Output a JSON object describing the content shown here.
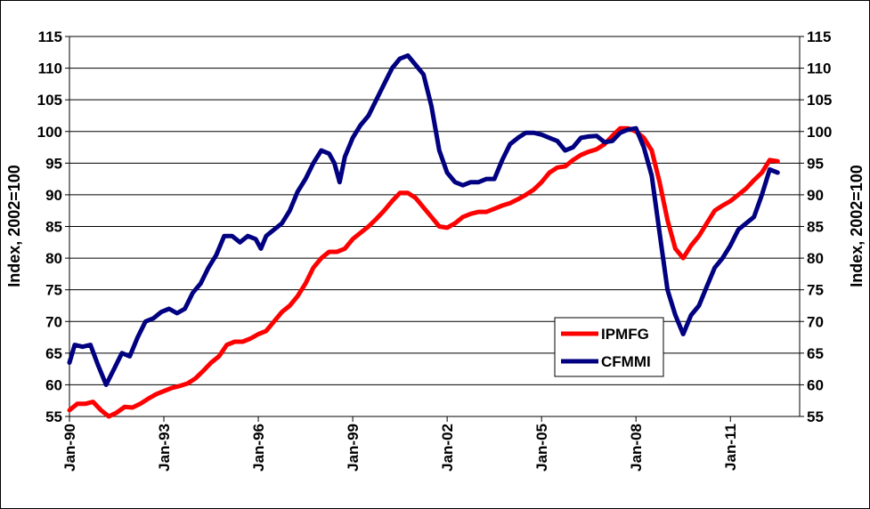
{
  "chart_data": {
    "type": "line",
    "ylabel_left": "Index, 2002=100",
    "ylabel_right": "Index, 2002=100",
    "xlabel": "",
    "ylim": [
      55,
      115
    ],
    "y_ticks": [
      55,
      60,
      65,
      70,
      75,
      80,
      85,
      90,
      95,
      100,
      105,
      110,
      115
    ],
    "x_ticks": [
      "Jan-90",
      "Jan-93",
      "Jan-96",
      "Jan-99",
      "Jan-02",
      "Jan-05",
      "Jan-08",
      "Jan-11"
    ],
    "grid": "horizontal",
    "legend_position": "lower-right",
    "colors": {
      "IPMFG": "#ff0000",
      "CFMMI": "#000080"
    },
    "series": [
      {
        "name": "IPMFG",
        "color": "#ff0000",
        "points": [
          [
            "1990-01",
            56.0
          ],
          [
            "1990-04",
            57.0
          ],
          [
            "1990-07",
            57.0
          ],
          [
            "1990-10",
            57.3
          ],
          [
            "1991-01",
            56.0
          ],
          [
            "1991-04",
            55.0
          ],
          [
            "1991-07",
            55.6
          ],
          [
            "1991-10",
            56.5
          ],
          [
            "1992-01",
            56.4
          ],
          [
            "1992-04",
            57.0
          ],
          [
            "1992-07",
            57.8
          ],
          [
            "1992-10",
            58.5
          ],
          [
            "1993-01",
            59.0
          ],
          [
            "1993-04",
            59.5
          ],
          [
            "1993-07",
            59.8
          ],
          [
            "1993-10",
            60.2
          ],
          [
            "1994-01",
            61.0
          ],
          [
            "1994-04",
            62.2
          ],
          [
            "1994-07",
            63.5
          ],
          [
            "1994-10",
            64.5
          ],
          [
            "1995-01",
            66.3
          ],
          [
            "1995-04",
            66.8
          ],
          [
            "1995-07",
            66.8
          ],
          [
            "1995-10",
            67.3
          ],
          [
            "1996-01",
            68.0
          ],
          [
            "1996-04",
            68.5
          ],
          [
            "1996-07",
            70.0
          ],
          [
            "1996-10",
            71.5
          ],
          [
            "1997-01",
            72.5
          ],
          [
            "1997-04",
            74.0
          ],
          [
            "1997-07",
            76.0
          ],
          [
            "1997-10",
            78.5
          ],
          [
            "1998-01",
            80.0
          ],
          [
            "1998-04",
            81.0
          ],
          [
            "1998-07",
            81.0
          ],
          [
            "1998-10",
            81.5
          ],
          [
            "1999-01",
            83.0
          ],
          [
            "1999-04",
            84.0
          ],
          [
            "1999-07",
            85.0
          ],
          [
            "1999-10",
            86.2
          ],
          [
            "2000-01",
            87.5
          ],
          [
            "2000-04",
            89.0
          ],
          [
            "2000-07",
            90.3
          ],
          [
            "2000-10",
            90.3
          ],
          [
            "2001-01",
            89.5
          ],
          [
            "2001-04",
            88.0
          ],
          [
            "2001-07",
            86.5
          ],
          [
            "2001-10",
            85.0
          ],
          [
            "2002-01",
            84.8
          ],
          [
            "2002-04",
            85.5
          ],
          [
            "2002-07",
            86.5
          ],
          [
            "2002-10",
            87.0
          ],
          [
            "2003-01",
            87.3
          ],
          [
            "2003-04",
            87.3
          ],
          [
            "2003-07",
            87.8
          ],
          [
            "2003-10",
            88.3
          ],
          [
            "2004-01",
            88.7
          ],
          [
            "2004-04",
            89.3
          ],
          [
            "2004-07",
            90.0
          ],
          [
            "2004-10",
            90.8
          ],
          [
            "2005-01",
            92.0
          ],
          [
            "2005-04",
            93.5
          ],
          [
            "2005-07",
            94.3
          ],
          [
            "2005-10",
            94.5
          ],
          [
            "2006-01",
            95.5
          ],
          [
            "2006-04",
            96.3
          ],
          [
            "2006-07",
            96.8
          ],
          [
            "2006-10",
            97.2
          ],
          [
            "2007-01",
            98.0
          ],
          [
            "2007-04",
            99.3
          ],
          [
            "2007-07",
            100.5
          ],
          [
            "2007-10",
            100.5
          ],
          [
            "2008-01",
            100.0
          ],
          [
            "2008-04",
            99.0
          ],
          [
            "2008-07",
            97.0
          ],
          [
            "2008-10",
            92.0
          ],
          [
            "2009-01",
            86.0
          ],
          [
            "2009-04",
            81.5
          ],
          [
            "2009-07",
            80.0
          ],
          [
            "2009-10",
            82.0
          ],
          [
            "2010-01",
            83.5
          ],
          [
            "2010-04",
            85.5
          ],
          [
            "2010-07",
            87.5
          ],
          [
            "2010-10",
            88.3
          ],
          [
            "2011-01",
            89.0
          ],
          [
            "2011-04",
            90.0
          ],
          [
            "2011-07",
            91.0
          ],
          [
            "2011-10",
            92.3
          ],
          [
            "2012-01",
            93.5
          ],
          [
            "2012-04",
            95.5
          ],
          [
            "2012-07",
            95.3
          ]
        ]
      },
      {
        "name": "CFMMI",
        "color": "#000080",
        "points": [
          [
            "1990-01",
            63.5
          ],
          [
            "1990-03",
            66.3
          ],
          [
            "1990-06",
            66.0
          ],
          [
            "1990-09",
            66.3
          ],
          [
            "1990-12",
            63.0
          ],
          [
            "1991-03",
            60.0
          ],
          [
            "1991-06",
            62.5
          ],
          [
            "1991-09",
            65.0
          ],
          [
            "1991-12",
            64.5
          ],
          [
            "1992-03",
            67.5
          ],
          [
            "1992-06",
            70.0
          ],
          [
            "1992-09",
            70.5
          ],
          [
            "1992-12",
            71.5
          ],
          [
            "1993-03",
            72.0
          ],
          [
            "1993-06",
            71.3
          ],
          [
            "1993-09",
            72.0
          ],
          [
            "1993-12",
            74.5
          ],
          [
            "1994-03",
            76.0
          ],
          [
            "1994-06",
            78.5
          ],
          [
            "1994-09",
            80.5
          ],
          [
            "1994-12",
            83.5
          ],
          [
            "1995-03",
            83.5
          ],
          [
            "1995-06",
            82.5
          ],
          [
            "1995-09",
            83.5
          ],
          [
            "1995-12",
            83.0
          ],
          [
            "1996-02",
            81.5
          ],
          [
            "1996-04",
            83.5
          ],
          [
            "1996-07",
            84.5
          ],
          [
            "1996-10",
            85.5
          ],
          [
            "1997-01",
            87.5
          ],
          [
            "1997-04",
            90.5
          ],
          [
            "1997-07",
            92.5
          ],
          [
            "1997-10",
            95.0
          ],
          [
            "1998-01",
            97.0
          ],
          [
            "1998-04",
            96.5
          ],
          [
            "1998-06",
            95.0
          ],
          [
            "1998-08",
            92.0
          ],
          [
            "1998-10",
            96.0
          ],
          [
            "1999-01",
            99.0
          ],
          [
            "1999-04",
            101.0
          ],
          [
            "1999-07",
            102.5
          ],
          [
            "1999-10",
            105.0
          ],
          [
            "2000-01",
            107.5
          ],
          [
            "2000-04",
            110.0
          ],
          [
            "2000-07",
            111.5
          ],
          [
            "2000-10",
            112.0
          ],
          [
            "2001-01",
            110.5
          ],
          [
            "2001-04",
            109.0
          ],
          [
            "2001-07",
            104.0
          ],
          [
            "2001-10",
            97.0
          ],
          [
            "2002-01",
            93.5
          ],
          [
            "2002-04",
            92.0
          ],
          [
            "2002-07",
            91.5
          ],
          [
            "2002-10",
            92.0
          ],
          [
            "2003-01",
            92.0
          ],
          [
            "2003-04",
            92.5
          ],
          [
            "2003-07",
            92.5
          ],
          [
            "2003-10",
            95.5
          ],
          [
            "2004-01",
            98.0
          ],
          [
            "2004-04",
            99.0
          ],
          [
            "2004-07",
            99.8
          ],
          [
            "2004-10",
            99.8
          ],
          [
            "2005-01",
            99.5
          ],
          [
            "2005-04",
            99.0
          ],
          [
            "2005-07",
            98.5
          ],
          [
            "2005-10",
            97.0
          ],
          [
            "2006-01",
            97.5
          ],
          [
            "2006-04",
            99.0
          ],
          [
            "2006-07",
            99.2
          ],
          [
            "2006-10",
            99.3
          ],
          [
            "2007-01",
            98.3
          ],
          [
            "2007-04",
            98.5
          ],
          [
            "2007-07",
            99.8
          ],
          [
            "2007-10",
            100.3
          ],
          [
            "2008-01",
            100.5
          ],
          [
            "2008-04",
            97.5
          ],
          [
            "2008-07",
            93.0
          ],
          [
            "2008-10",
            84.0
          ],
          [
            "2009-01",
            75.0
          ],
          [
            "2009-04",
            71.0
          ],
          [
            "2009-07",
            68.0
          ],
          [
            "2009-10",
            71.0
          ],
          [
            "2010-01",
            72.5
          ],
          [
            "2010-04",
            75.5
          ],
          [
            "2010-07",
            78.5
          ],
          [
            "2010-10",
            80.0
          ],
          [
            "2011-01",
            82.0
          ],
          [
            "2011-04",
            84.5
          ],
          [
            "2011-07",
            85.5
          ],
          [
            "2011-10",
            86.5
          ],
          [
            "2012-01",
            90.0
          ],
          [
            "2012-04",
            94.0
          ],
          [
            "2012-07",
            93.5
          ]
        ]
      }
    ]
  }
}
